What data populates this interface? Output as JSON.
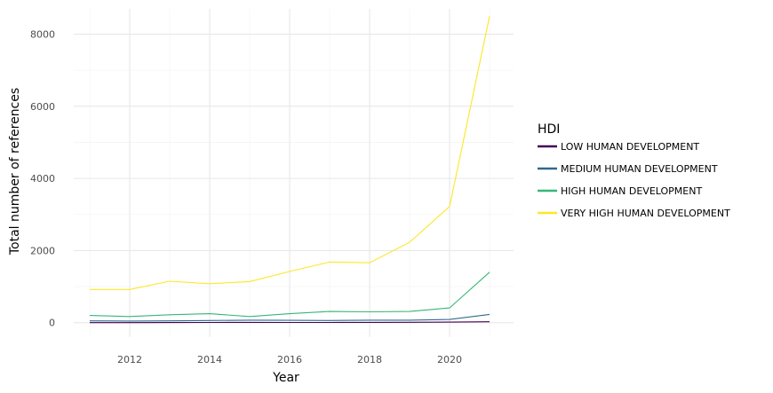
{
  "chart_data": {
    "type": "line",
    "xlabel": "Year",
    "ylabel": "Total number of references",
    "xlim": [
      2010.6,
      2021.6
    ],
    "ylim": [
      -400,
      8700
    ],
    "x_ticks": [
      2012,
      2014,
      2016,
      2018,
      2020
    ],
    "y_ticks": [
      0,
      2000,
      4000,
      6000,
      8000
    ],
    "x_tick_labels": [
      "2012",
      "2014",
      "2016",
      "2018",
      "2020"
    ],
    "y_tick_labels": [
      "0",
      "2000",
      "4000",
      "6000",
      "8000"
    ],
    "grid": true,
    "legend": {
      "title": "HDI",
      "placement": "right"
    },
    "x": [
      2011,
      2012,
      2013,
      2014,
      2015,
      2016,
      2017,
      2018,
      2019,
      2020,
      2021
    ],
    "series": [
      {
        "name": "LOW HUMAN DEVELOPMENT",
        "color": "#440154",
        "values": [
          0,
          2,
          3,
          5,
          8,
          7,
          5,
          8,
          10,
          15,
          25
        ]
      },
      {
        "name": "MEDIUM HUMAN DEVELOPMENT",
        "color": "#31688e",
        "values": [
          50,
          45,
          50,
          60,
          70,
          65,
          60,
          70,
          70,
          90,
          230
        ]
      },
      {
        "name": "HIGH HUMAN DEVELOPMENT",
        "color": "#35b779",
        "values": [
          200,
          170,
          220,
          250,
          170,
          250,
          310,
          300,
          310,
          410,
          1400
        ]
      },
      {
        "name": "VERY HIGH HUMAN DEVELOPMENT",
        "color": "#fde725",
        "values": [
          920,
          920,
          1150,
          1080,
          1140,
          1420,
          1680,
          1660,
          2230,
          3220,
          8500
        ]
      }
    ]
  }
}
